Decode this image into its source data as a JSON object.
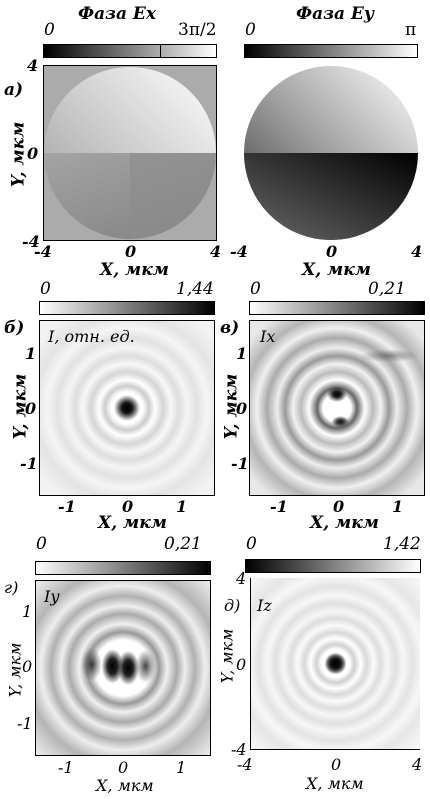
{
  "figure": {
    "top_left": {
      "title": "Фаза Ex",
      "cbar_min": "0",
      "cbar_max": "3π/2",
      "label": "a)",
      "y_axis": "Y, мкм",
      "x_axis": "X, мкм",
      "y_ticks": [
        "4",
        "0",
        "-4"
      ],
      "x_ticks": [
        "-4",
        "0",
        "4"
      ]
    },
    "top_right": {
      "title": "Фаза Ey",
      "cbar_min": "0",
      "cbar_max": "π",
      "x_axis": "X, мкм",
      "x_ticks": [
        "-4",
        "0",
        "4"
      ]
    },
    "mid_left": {
      "cbar_min": "0",
      "cbar_max": "1,44",
      "label": "б)",
      "inner": "I, отн. ед.",
      "y_axis": "Y, мкм",
      "x_axis": "X, мкм",
      "y_ticks": [
        "1",
        "0",
        "-1"
      ],
      "x_ticks": [
        "-1",
        "0",
        "1"
      ]
    },
    "mid_right": {
      "cbar_min": "0",
      "cbar_max": "0,21",
      "label": "в)",
      "inner": "Ix",
      "y_axis": "Y, мкм",
      "x_axis": "X, мкм",
      "y_ticks": [
        "1",
        "0",
        "-1"
      ],
      "x_ticks": [
        "-1",
        "0",
        "1"
      ]
    },
    "bot_left": {
      "cbar_min": "0",
      "cbar_max": "0,21",
      "label": "г)",
      "inner": "Iy",
      "y_axis": "Y, мкм",
      "x_axis": "X, мкм",
      "y_ticks": [
        "1",
        "0",
        "-1"
      ],
      "x_ticks": [
        "-1",
        "0",
        "1"
      ]
    },
    "bot_right": {
      "cbar_min": "0",
      "cbar_max": "1,42",
      "label": "д)",
      "inner": "Iz",
      "y_axis": "Y, мкм",
      "x_axis": "X, мкм",
      "y_ticks": [
        "4",
        "0",
        "-4"
      ],
      "x_ticks": [
        "-4",
        "0",
        "4"
      ]
    }
  }
}
